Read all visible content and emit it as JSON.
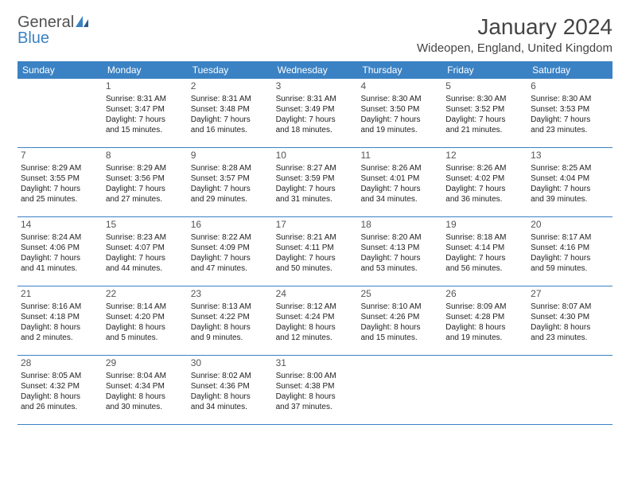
{
  "logo": {
    "word1": "General",
    "word2": "Blue"
  },
  "title": "January 2024",
  "location": "Wideopen, England, United Kingdom",
  "colors": {
    "accent": "#3b82c4",
    "text_dark": "#444444",
    "text_body": "#222222",
    "background": "#ffffff"
  },
  "day_headers": [
    "Sunday",
    "Monday",
    "Tuesday",
    "Wednesday",
    "Thursday",
    "Friday",
    "Saturday"
  ],
  "weeks": [
    [
      {
        "n": "",
        "sr": "",
        "ss": "",
        "d1": "",
        "d2": ""
      },
      {
        "n": "1",
        "sr": "Sunrise: 8:31 AM",
        "ss": "Sunset: 3:47 PM",
        "d1": "Daylight: 7 hours",
        "d2": "and 15 minutes."
      },
      {
        "n": "2",
        "sr": "Sunrise: 8:31 AM",
        "ss": "Sunset: 3:48 PM",
        "d1": "Daylight: 7 hours",
        "d2": "and 16 minutes."
      },
      {
        "n": "3",
        "sr": "Sunrise: 8:31 AM",
        "ss": "Sunset: 3:49 PM",
        "d1": "Daylight: 7 hours",
        "d2": "and 18 minutes."
      },
      {
        "n": "4",
        "sr": "Sunrise: 8:30 AM",
        "ss": "Sunset: 3:50 PM",
        "d1": "Daylight: 7 hours",
        "d2": "and 19 minutes."
      },
      {
        "n": "5",
        "sr": "Sunrise: 8:30 AM",
        "ss": "Sunset: 3:52 PM",
        "d1": "Daylight: 7 hours",
        "d2": "and 21 minutes."
      },
      {
        "n": "6",
        "sr": "Sunrise: 8:30 AM",
        "ss": "Sunset: 3:53 PM",
        "d1": "Daylight: 7 hours",
        "d2": "and 23 minutes."
      }
    ],
    [
      {
        "n": "7",
        "sr": "Sunrise: 8:29 AM",
        "ss": "Sunset: 3:55 PM",
        "d1": "Daylight: 7 hours",
        "d2": "and 25 minutes."
      },
      {
        "n": "8",
        "sr": "Sunrise: 8:29 AM",
        "ss": "Sunset: 3:56 PM",
        "d1": "Daylight: 7 hours",
        "d2": "and 27 minutes."
      },
      {
        "n": "9",
        "sr": "Sunrise: 8:28 AM",
        "ss": "Sunset: 3:57 PM",
        "d1": "Daylight: 7 hours",
        "d2": "and 29 minutes."
      },
      {
        "n": "10",
        "sr": "Sunrise: 8:27 AM",
        "ss": "Sunset: 3:59 PM",
        "d1": "Daylight: 7 hours",
        "d2": "and 31 minutes."
      },
      {
        "n": "11",
        "sr": "Sunrise: 8:26 AM",
        "ss": "Sunset: 4:01 PM",
        "d1": "Daylight: 7 hours",
        "d2": "and 34 minutes."
      },
      {
        "n": "12",
        "sr": "Sunrise: 8:26 AM",
        "ss": "Sunset: 4:02 PM",
        "d1": "Daylight: 7 hours",
        "d2": "and 36 minutes."
      },
      {
        "n": "13",
        "sr": "Sunrise: 8:25 AM",
        "ss": "Sunset: 4:04 PM",
        "d1": "Daylight: 7 hours",
        "d2": "and 39 minutes."
      }
    ],
    [
      {
        "n": "14",
        "sr": "Sunrise: 8:24 AM",
        "ss": "Sunset: 4:06 PM",
        "d1": "Daylight: 7 hours",
        "d2": "and 41 minutes."
      },
      {
        "n": "15",
        "sr": "Sunrise: 8:23 AM",
        "ss": "Sunset: 4:07 PM",
        "d1": "Daylight: 7 hours",
        "d2": "and 44 minutes."
      },
      {
        "n": "16",
        "sr": "Sunrise: 8:22 AM",
        "ss": "Sunset: 4:09 PM",
        "d1": "Daylight: 7 hours",
        "d2": "and 47 minutes."
      },
      {
        "n": "17",
        "sr": "Sunrise: 8:21 AM",
        "ss": "Sunset: 4:11 PM",
        "d1": "Daylight: 7 hours",
        "d2": "and 50 minutes."
      },
      {
        "n": "18",
        "sr": "Sunrise: 8:20 AM",
        "ss": "Sunset: 4:13 PM",
        "d1": "Daylight: 7 hours",
        "d2": "and 53 minutes."
      },
      {
        "n": "19",
        "sr": "Sunrise: 8:18 AM",
        "ss": "Sunset: 4:14 PM",
        "d1": "Daylight: 7 hours",
        "d2": "and 56 minutes."
      },
      {
        "n": "20",
        "sr": "Sunrise: 8:17 AM",
        "ss": "Sunset: 4:16 PM",
        "d1": "Daylight: 7 hours",
        "d2": "and 59 minutes."
      }
    ],
    [
      {
        "n": "21",
        "sr": "Sunrise: 8:16 AM",
        "ss": "Sunset: 4:18 PM",
        "d1": "Daylight: 8 hours",
        "d2": "and 2 minutes."
      },
      {
        "n": "22",
        "sr": "Sunrise: 8:14 AM",
        "ss": "Sunset: 4:20 PM",
        "d1": "Daylight: 8 hours",
        "d2": "and 5 minutes."
      },
      {
        "n": "23",
        "sr": "Sunrise: 8:13 AM",
        "ss": "Sunset: 4:22 PM",
        "d1": "Daylight: 8 hours",
        "d2": "and 9 minutes."
      },
      {
        "n": "24",
        "sr": "Sunrise: 8:12 AM",
        "ss": "Sunset: 4:24 PM",
        "d1": "Daylight: 8 hours",
        "d2": "and 12 minutes."
      },
      {
        "n": "25",
        "sr": "Sunrise: 8:10 AM",
        "ss": "Sunset: 4:26 PM",
        "d1": "Daylight: 8 hours",
        "d2": "and 15 minutes."
      },
      {
        "n": "26",
        "sr": "Sunrise: 8:09 AM",
        "ss": "Sunset: 4:28 PM",
        "d1": "Daylight: 8 hours",
        "d2": "and 19 minutes."
      },
      {
        "n": "27",
        "sr": "Sunrise: 8:07 AM",
        "ss": "Sunset: 4:30 PM",
        "d1": "Daylight: 8 hours",
        "d2": "and 23 minutes."
      }
    ],
    [
      {
        "n": "28",
        "sr": "Sunrise: 8:05 AM",
        "ss": "Sunset: 4:32 PM",
        "d1": "Daylight: 8 hours",
        "d2": "and 26 minutes."
      },
      {
        "n": "29",
        "sr": "Sunrise: 8:04 AM",
        "ss": "Sunset: 4:34 PM",
        "d1": "Daylight: 8 hours",
        "d2": "and 30 minutes."
      },
      {
        "n": "30",
        "sr": "Sunrise: 8:02 AM",
        "ss": "Sunset: 4:36 PM",
        "d1": "Daylight: 8 hours",
        "d2": "and 34 minutes."
      },
      {
        "n": "31",
        "sr": "Sunrise: 8:00 AM",
        "ss": "Sunset: 4:38 PM",
        "d1": "Daylight: 8 hours",
        "d2": "and 37 minutes."
      },
      {
        "n": "",
        "sr": "",
        "ss": "",
        "d1": "",
        "d2": ""
      },
      {
        "n": "",
        "sr": "",
        "ss": "",
        "d1": "",
        "d2": ""
      },
      {
        "n": "",
        "sr": "",
        "ss": "",
        "d1": "",
        "d2": ""
      }
    ]
  ]
}
